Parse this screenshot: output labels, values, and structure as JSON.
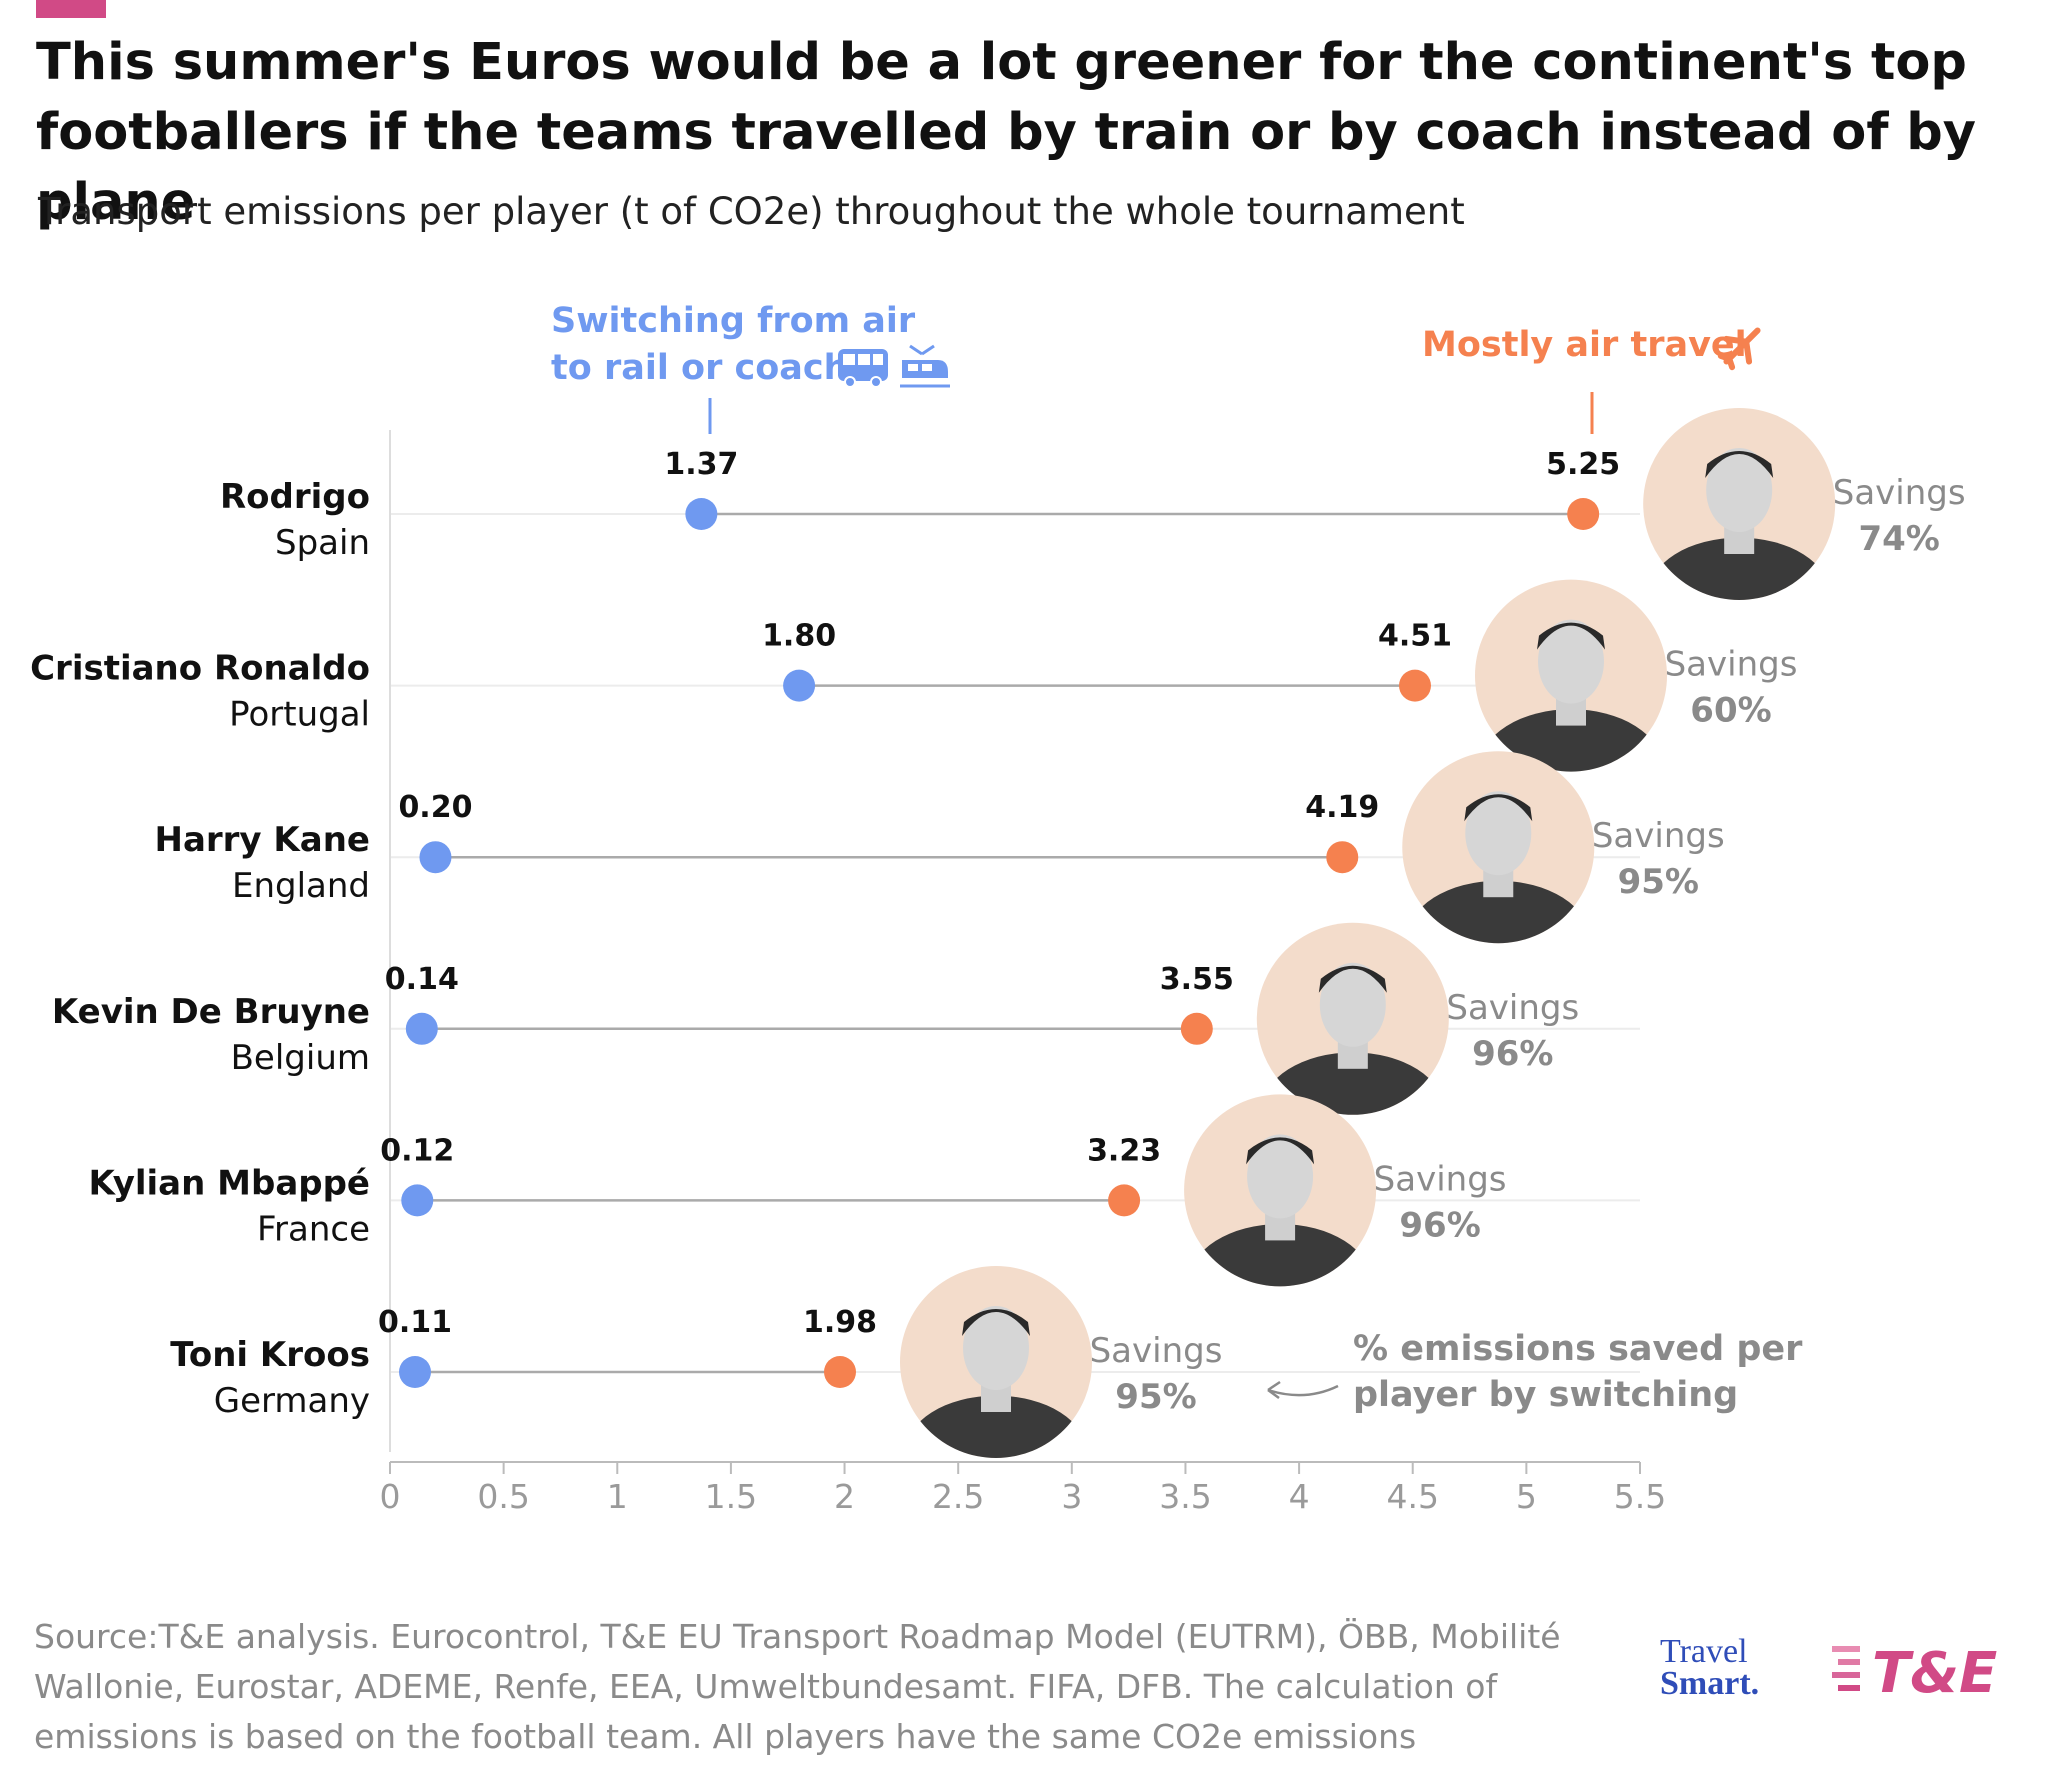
{
  "header": {
    "title": "This summer's Euros would be a lot greener for the continent's top footballers if the teams travelled by train or by coach instead of by plane",
    "subtitle": "Transport emissions per player (t of CO2e) throughout the whole tournament"
  },
  "colors": {
    "rail_coach": "#6f99f0",
    "air": "#f5814f",
    "connector": "#aaaaaa",
    "gridline": "#ececec",
    "photo_bg": "#f3dccb",
    "accent": "#d14a86",
    "muted_text": "#8a8a8a"
  },
  "chart_data": {
    "type": "dumbbell",
    "title": "This summer's Euros would be a lot greener for the continent's top footballers if the teams travelled by train or by coach instead of by plane",
    "subtitle": "Transport emissions per player (t of CO2e) throughout the whole tournament",
    "xlim": [
      0,
      5.5
    ],
    "x_ticks": [
      "0",
      "0.5",
      "1",
      "1.5",
      "2",
      "2.5",
      "3",
      "3.5",
      "4",
      "4.5",
      "5",
      "5.5"
    ],
    "grid": "horizontal row lines",
    "series": [
      {
        "name": "Switching from air to rail or coach",
        "key": "rail",
        "color": "#6f99f0"
      },
      {
        "name": "Mostly air travel",
        "key": "air",
        "color": "#f5814f"
      }
    ],
    "players": [
      {
        "name": "Rodrigo",
        "country": "Spain",
        "rail": 1.37,
        "air": 5.25,
        "rail_label": "1.37",
        "air_label": "5.25",
        "savings_label": "Savings",
        "savings": "74%"
      },
      {
        "name": "Cristiano Ronaldo",
        "country": "Portugal",
        "rail": 1.8,
        "air": 4.51,
        "rail_label": "1.80",
        "air_label": "4.51",
        "savings_label": "Savings",
        "savings": "60%"
      },
      {
        "name": "Harry Kane",
        "country": "England",
        "rail": 0.2,
        "air": 4.19,
        "rail_label": "0.20",
        "air_label": "4.19",
        "savings_label": "Savings",
        "savings": "95%"
      },
      {
        "name": "Kevin De Bruyne",
        "country": "Belgium",
        "rail": 0.14,
        "air": 3.55,
        "rail_label": "0.14",
        "air_label": "3.55",
        "savings_label": "Savings",
        "savings": "96%"
      },
      {
        "name": "Kylian Mbappé",
        "country": "France",
        "rail": 0.12,
        "air": 3.23,
        "rail_label": "0.12",
        "air_label": "3.23",
        "savings_label": "Savings",
        "savings": "96%"
      },
      {
        "name": "Toni Kroos",
        "country": "Germany",
        "rail": 0.11,
        "air": 1.98,
        "rail_label": "0.11",
        "air_label": "1.98",
        "savings_label": "Savings",
        "savings": "95%"
      }
    ],
    "annotations": {
      "rail_line1": "Switching from air",
      "rail_line2": "to rail or coach",
      "rail_icons": [
        "bus-icon",
        "train-icon"
      ],
      "air": "Mostly air travel",
      "air_icon": "airplane-icon",
      "savings_line1": "% emissions saved per",
      "savings_line2": "player by switching"
    }
  },
  "footer": {
    "source": "Source:T&E analysis. Eurocontrol, T&E EU Transport Roadmap Model (EUTRM), ÖBB, Mobilité Wallonie, Eurostar, ADEME, Renfe, EEA, Umweltbundesamt. FIFA, DFB. The calculation of emissions is based on the football team. All players have the same CO2e emissions",
    "brand_travel_line1": "Travel",
    "brand_travel_line2": "Smart.",
    "brand_te": "T&E"
  }
}
